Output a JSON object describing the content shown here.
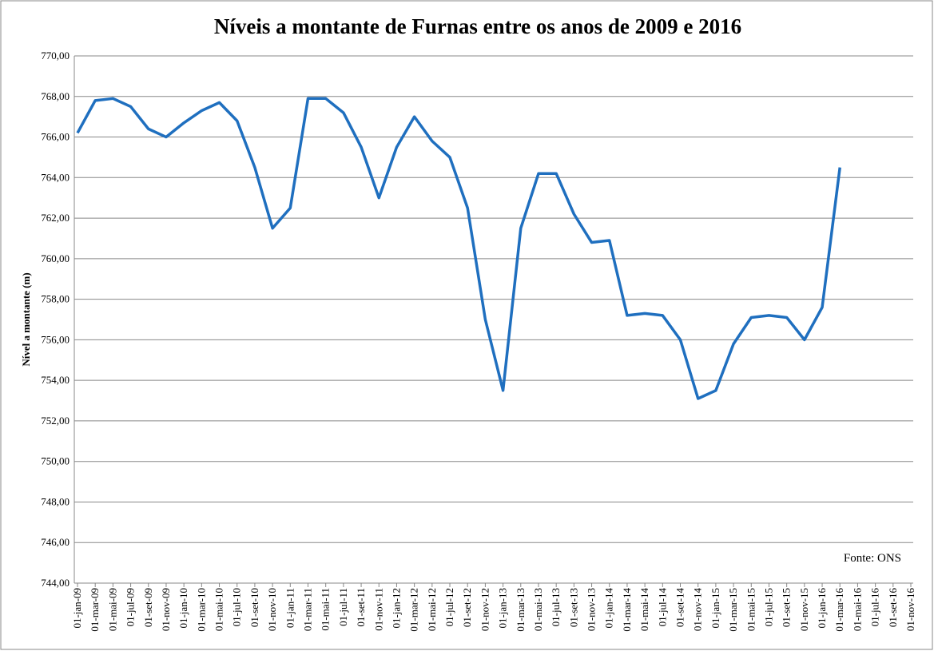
{
  "chart_data": {
    "type": "line",
    "title": "Níveis a montante de Furnas entre os anos de 2009 e 2016",
    "y_label": "Nível a montante  (m)",
    "annotation": "Fonte: ONS",
    "categories": [
      "01-jan-09",
      "01-mar-09",
      "01-mai-09",
      "01-jul-09",
      "01-set-09",
      "01-nov-09",
      "01-jan-10",
      "01-mar-10",
      "01-mai-10",
      "01-jul-10",
      "01-set-10",
      "01-nov-10",
      "01-jan-11",
      "01-mar-11",
      "01-mai-11",
      "01-jul-11",
      "01-set-11",
      "01-nov-11",
      "01-jan-12",
      "01-mar-12",
      "01-mai-12",
      "01-jul-12",
      "01-set-12",
      "01-nov-12",
      "01-jan-13",
      "01-mar-13",
      "01-mai-13",
      "01-jul-13",
      "01-set-13",
      "01-nov-13",
      "01-jan-14",
      "01-mar-14",
      "01-mai-14",
      "01-jul-14",
      "01-set-14",
      "01-nov-14",
      "01-jan-15",
      "01-mar-15",
      "01-mai-15",
      "01-jul-15",
      "01-set-15",
      "01-nov-15",
      "01-jan-16",
      "01-mar-16",
      "01-mai-16",
      "01-jul-16",
      "01-set-16",
      "01-nov-16"
    ],
    "series": [
      {
        "name": "Nível a montante",
        "color": "#1f6fbf",
        "values": [
          766.2,
          767.8,
          767.9,
          767.5,
          766.4,
          766.0,
          766.7,
          767.3,
          767.7,
          766.8,
          764.5,
          761.5,
          762.5,
          767.9,
          767.9,
          767.2,
          765.5,
          763.0,
          765.5,
          767.0,
          765.8,
          765.0,
          762.5,
          757.0,
          753.5,
          761.5,
          764.2,
          764.2,
          762.2,
          760.8,
          760.9,
          757.2,
          757.3,
          757.2,
          756.0,
          753.1,
          753.5,
          755.8,
          757.1,
          757.2,
          757.1,
          756.0,
          757.6,
          764.5,
          null,
          null,
          null,
          null
        ]
      }
    ],
    "ylim": [
      744,
      770
    ],
    "yticks": [
      {
        "value": 744,
        "label": "744,00"
      },
      {
        "value": 746,
        "label": "746,00"
      },
      {
        "value": 748,
        "label": "748,00"
      },
      {
        "value": 750,
        "label": "750,00"
      },
      {
        "value": 752,
        "label": "752,00"
      },
      {
        "value": 754,
        "label": "754,00"
      },
      {
        "value": 756,
        "label": "756,00"
      },
      {
        "value": 758,
        "label": "758,00"
      },
      {
        "value": 760,
        "label": "760,00"
      },
      {
        "value": 762,
        "label": "762,00"
      },
      {
        "value": 764,
        "label": "764,00"
      },
      {
        "value": 766,
        "label": "766,00"
      },
      {
        "value": 768,
        "label": "768,00"
      },
      {
        "value": 770,
        "label": "770,00"
      }
    ],
    "grid": true
  }
}
